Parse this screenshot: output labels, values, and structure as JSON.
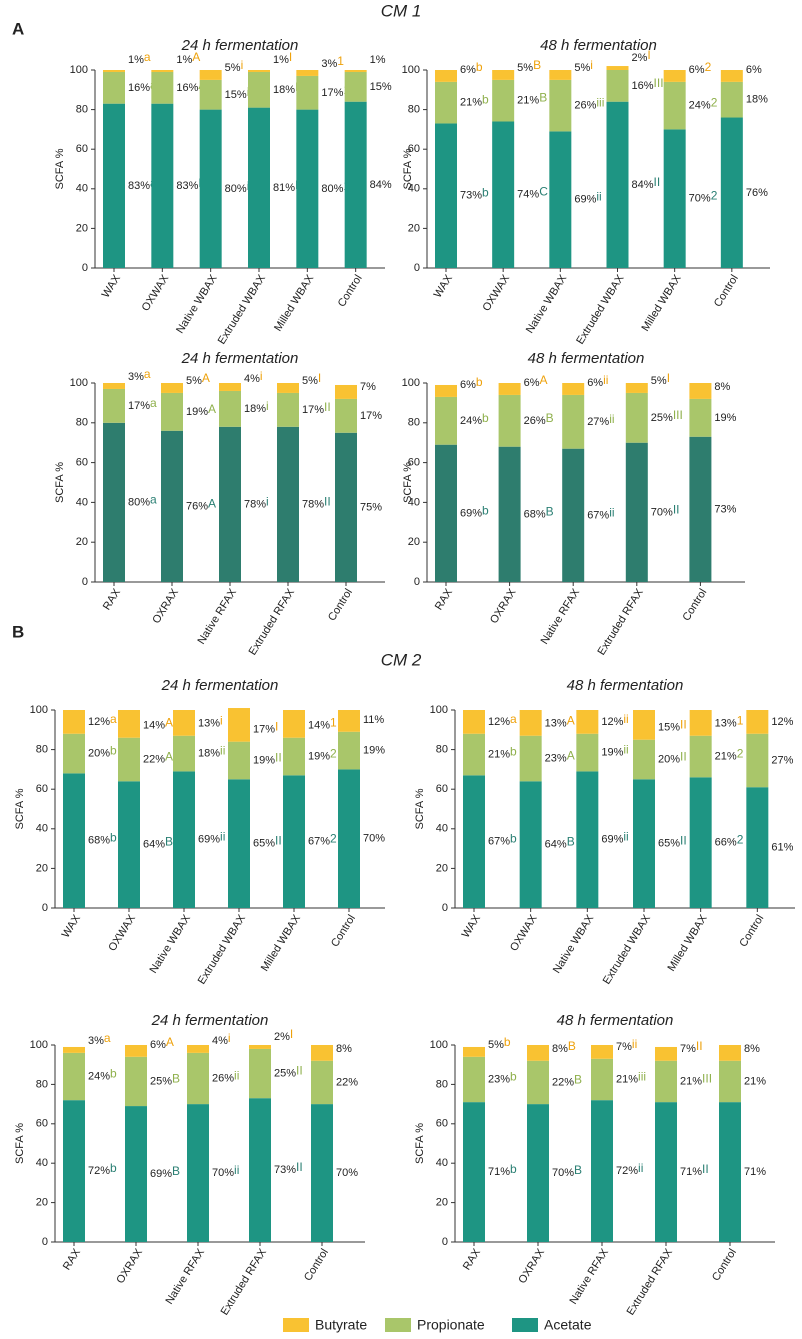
{
  "figure": {
    "sections": [
      {
        "label": "A",
        "title": "CM 1"
      },
      {
        "label": "B",
        "title": "CM 2"
      }
    ]
  },
  "chart_data": [
    {
      "type": "bar",
      "stacked": true,
      "title": "24 h fermentation",
      "ylabel": "SCFA %",
      "categories": [
        "WAX",
        "OXWAX",
        "Native WBAX",
        "Extruded WBAX",
        "Milled WBAX",
        "Control"
      ],
      "ylim": [
        0,
        100
      ],
      "yticks": [
        0,
        20,
        40,
        60,
        80,
        100
      ],
      "series": [
        {
          "name": "Butyrate",
          "color": "#f9c232",
          "letter_color": "#eea20c",
          "values": [
            1,
            1,
            5,
            1,
            3,
            1
          ],
          "value_labels": [
            "1%",
            "1%",
            "5%",
            "1%",
            "3%",
            "1%"
          ],
          "letters": [
            "a",
            "A",
            "i",
            "I",
            "1",
            null
          ]
        },
        {
          "name": "Propionate",
          "color": "#a9c66a",
          "letter_color": "#8fb04c",
          "values": [
            16,
            16,
            15,
            18,
            17,
            15
          ],
          "value_labels": [
            "16%",
            "16%",
            "15%",
            "18%",
            "17%",
            "15%"
          ],
          "letters": [
            "a",
            "A",
            "i",
            "II",
            "1",
            null
          ]
        },
        {
          "name": "Acetate",
          "color": "#1e9583",
          "letter_color": "#2a7f73",
          "values": [
            83,
            83,
            80,
            81,
            80,
            84
          ],
          "value_labels": [
            "83%",
            "83%",
            "80%",
            "81%",
            "80%",
            "84%"
          ],
          "letters": [
            "a",
            "B",
            "i",
            "II",
            "1",
            null
          ]
        }
      ]
    },
    {
      "type": "bar",
      "stacked": true,
      "title": "48 h fermentation",
      "ylabel": "SCFA %",
      "categories": [
        "WAX",
        "OXWAX",
        "Native WBAX",
        "Extruded WBAX",
        "Milled WBAX",
        "Control"
      ],
      "ylim": [
        0,
        100
      ],
      "yticks": [
        0,
        20,
        40,
        60,
        80,
        100
      ],
      "series": [
        {
          "name": "Butyrate",
          "color": "#f9c232",
          "letter_color": "#eea20c",
          "values": [
            6,
            5,
            5,
            2,
            6,
            6
          ],
          "value_labels": [
            "6%",
            "5%",
            "5%",
            "2%",
            "6%",
            "6%"
          ],
          "letters": [
            "b",
            "B",
            "i",
            "I",
            "2",
            null
          ]
        },
        {
          "name": "Propionate",
          "color": "#a9c66a",
          "letter_color": "#8fb04c",
          "values": [
            21,
            21,
            26,
            16,
            24,
            18
          ],
          "value_labels": [
            "21%",
            "21%",
            "26%",
            "16%",
            "24%",
            "18%"
          ],
          "letters": [
            "b",
            "B",
            "iii",
            "III",
            "2",
            null
          ]
        },
        {
          "name": "Acetate",
          "color": "#1e9583",
          "letter_color": "#2a7f73",
          "values": [
            73,
            74,
            69,
            84,
            70,
            76
          ],
          "value_labels": [
            "73%",
            "74%",
            "69%",
            "84%",
            "70%",
            "76%"
          ],
          "letters": [
            "b",
            "C",
            "ii",
            "II",
            "2",
            null
          ]
        }
      ]
    },
    {
      "type": "bar",
      "stacked": true,
      "title": "24 h fermentation",
      "ylabel": "SCFA %",
      "categories": [
        "RAX",
        "OXRAX",
        "Native RFAX",
        "Extruded RFAX",
        "Control"
      ],
      "ylim": [
        0,
        100
      ],
      "yticks": [
        0,
        20,
        40,
        60,
        80,
        100
      ],
      "series": [
        {
          "name": "Butyrate",
          "color": "#f9c232",
          "letter_color": "#eea20c",
          "values": [
            3,
            5,
            4,
            5,
            7
          ],
          "value_labels": [
            "3%",
            "5%",
            "4%",
            "5%",
            "7%"
          ],
          "letters": [
            "a",
            "A",
            "i",
            "I",
            null
          ]
        },
        {
          "name": "Propionate",
          "color": "#a9c66a",
          "letter_color": "#8fb04c",
          "values": [
            17,
            19,
            18,
            17,
            17
          ],
          "value_labels": [
            "17%",
            "19%",
            "18%",
            "17%",
            "17%"
          ],
          "letters": [
            "a",
            "A",
            "i",
            "II",
            null
          ]
        },
        {
          "name": "Acetate",
          "color": "#2e7d6e",
          "letter_color": "#2a7f73",
          "values": [
            80,
            76,
            78,
            78,
            75
          ],
          "value_labels": [
            "80%",
            "76%",
            "78%",
            "78%",
            "75%"
          ],
          "letters": [
            "a",
            "A",
            "i",
            "II",
            null
          ]
        }
      ]
    },
    {
      "type": "bar",
      "stacked": true,
      "title": "48 h fermentation",
      "ylabel": "SCFA %",
      "categories": [
        "RAX",
        "OXRAX",
        "Native RFAX",
        "Extruded RFAX",
        "Control"
      ],
      "ylim": [
        0,
        100
      ],
      "yticks": [
        0,
        20,
        40,
        60,
        80,
        100
      ],
      "series": [
        {
          "name": "Butyrate",
          "color": "#f9c232",
          "letter_color": "#eea20c",
          "values": [
            6,
            6,
            6,
            5,
            8
          ],
          "value_labels": [
            "6%",
            "6%",
            "6%",
            "5%",
            "8%"
          ],
          "letters": [
            "b",
            "A",
            "ii",
            "I",
            null
          ]
        },
        {
          "name": "Propionate",
          "color": "#a9c66a",
          "letter_color": "#8fb04c",
          "values": [
            24,
            26,
            27,
            25,
            19
          ],
          "value_labels": [
            "24%",
            "26%",
            "27%",
            "25%",
            "19%"
          ],
          "letters": [
            "b",
            "B",
            "ii",
            "III",
            null
          ]
        },
        {
          "name": "Acetate",
          "color": "#2e7d6e",
          "letter_color": "#2a7f73",
          "values": [
            69,
            68,
            67,
            70,
            73
          ],
          "value_labels": [
            "69%",
            "68%",
            "67%",
            "70%",
            "73%"
          ],
          "letters": [
            "b",
            "B",
            "ii",
            "II",
            null
          ]
        }
      ]
    },
    {
      "type": "bar",
      "stacked": true,
      "title": "24 h fermentation",
      "ylabel": "SCFA %",
      "categories": [
        "WAX",
        "OXWAX",
        "Native WBAX",
        "Extruded WBAX",
        "Milled WBAX",
        "Control"
      ],
      "ylim": [
        0,
        100
      ],
      "yticks": [
        0,
        20,
        40,
        60,
        80,
        100
      ],
      "series": [
        {
          "name": "Butyrate",
          "color": "#f9c232",
          "letter_color": "#eea20c",
          "values": [
            12,
            14,
            13,
            17,
            14,
            11
          ],
          "value_labels": [
            "12%",
            "14%",
            "13%",
            "17%",
            "14%",
            "11%"
          ],
          "letters": [
            "a",
            "A",
            "i",
            "I",
            "1",
            null
          ]
        },
        {
          "name": "Propionate",
          "color": "#a9c66a",
          "letter_color": "#8fb04c",
          "values": [
            20,
            22,
            18,
            19,
            19,
            19
          ],
          "value_labels": [
            "20%",
            "22%",
            "18%",
            "19%",
            "19%",
            "19%"
          ],
          "letters": [
            "b",
            "A",
            "ii",
            "II",
            "2",
            null
          ]
        },
        {
          "name": "Acetate",
          "color": "#1e9583",
          "letter_color": "#2a7f73",
          "values": [
            68,
            64,
            69,
            65,
            67,
            70
          ],
          "value_labels": [
            "68%",
            "64%",
            "69%",
            "65%",
            "67%",
            "70%"
          ],
          "letters": [
            "b",
            "B",
            "ii",
            "II",
            "2",
            null
          ]
        }
      ]
    },
    {
      "type": "bar",
      "stacked": true,
      "title": "48 h fermentation",
      "ylabel": "SCFA %",
      "categories": [
        "WAX",
        "OXWAX",
        "Native WBAX",
        "Extruded WBAX",
        "Milled WBAX",
        "Control"
      ],
      "ylim": [
        0,
        100
      ],
      "yticks": [
        0,
        20,
        40,
        60,
        80,
        100
      ],
      "series": [
        {
          "name": "Butyrate",
          "color": "#f9c232",
          "letter_color": "#eea20c",
          "values": [
            12,
            13,
            12,
            15,
            13,
            12
          ],
          "value_labels": [
            "12%",
            "13%",
            "12%",
            "15%",
            "13%",
            "12%"
          ],
          "letters": [
            "a",
            "A",
            "ii",
            "II",
            "1",
            null
          ]
        },
        {
          "name": "Propionate",
          "color": "#a9c66a",
          "letter_color": "#8fb04c",
          "values": [
            21,
            23,
            19,
            20,
            21,
            27
          ],
          "value_labels": [
            "21%",
            "23%",
            "19%",
            "20%",
            "21%",
            "27%"
          ],
          "letters": [
            "b",
            "A",
            "ii",
            "II",
            "2",
            null
          ]
        },
        {
          "name": "Acetate",
          "color": "#1e9583",
          "letter_color": "#2a7f73",
          "values": [
            67,
            64,
            69,
            65,
            66,
            61
          ],
          "value_labels": [
            "67%",
            "64%",
            "69%",
            "65%",
            "66%",
            "61%"
          ],
          "letters": [
            "b",
            "B",
            "ii",
            "II",
            "2",
            null
          ]
        }
      ]
    },
    {
      "type": "bar",
      "stacked": true,
      "title": "24 h fermentation",
      "ylabel": "SCFA %",
      "categories": [
        "RAX",
        "OXRAX",
        "Native RFAX",
        "Extruded RFAX",
        "Control"
      ],
      "ylim": [
        0,
        100
      ],
      "yticks": [
        0,
        20,
        40,
        60,
        80,
        100
      ],
      "series": [
        {
          "name": "Butyrate",
          "color": "#f9c232",
          "letter_color": "#eea20c",
          "values": [
            3,
            6,
            4,
            2,
            8
          ],
          "value_labels": [
            "3%",
            "6%",
            "4%",
            "2%",
            "8%"
          ],
          "letters": [
            "a",
            "A",
            "i",
            "I",
            null
          ]
        },
        {
          "name": "Propionate",
          "color": "#a9c66a",
          "letter_color": "#8fb04c",
          "values": [
            24,
            25,
            26,
            25,
            22
          ],
          "value_labels": [
            "24%",
            "25%",
            "26%",
            "25%",
            "22%"
          ],
          "letters": [
            "b",
            "B",
            "ii",
            "II",
            null
          ]
        },
        {
          "name": "Acetate",
          "color": "#1e9583",
          "letter_color": "#2a7f73",
          "values": [
            72,
            69,
            70,
            73,
            70
          ],
          "value_labels": [
            "72%",
            "69%",
            "70%",
            "73%",
            "70%"
          ],
          "letters": [
            "b",
            "B",
            "ii",
            "II",
            null
          ]
        }
      ]
    },
    {
      "type": "bar",
      "stacked": true,
      "title": "48 h fermentation",
      "ylabel": "SCFA %",
      "categories": [
        "RAX",
        "OXRAX",
        "Native RFAX",
        "Extruded RFAX",
        "Control"
      ],
      "ylim": [
        0,
        100
      ],
      "yticks": [
        0,
        20,
        40,
        60,
        80,
        100
      ],
      "series": [
        {
          "name": "Butyrate",
          "color": "#f9c232",
          "letter_color": "#eea20c",
          "values": [
            5,
            8,
            7,
            7,
            8
          ],
          "value_labels": [
            "5%",
            "8%",
            "7%",
            "7%",
            "8%"
          ],
          "letters": [
            "b",
            "B",
            "ii",
            "II",
            null
          ]
        },
        {
          "name": "Propionate",
          "color": "#a9c66a",
          "letter_color": "#8fb04c",
          "values": [
            23,
            22,
            21,
            21,
            21
          ],
          "value_labels": [
            "23%",
            "22%",
            "21%",
            "21%",
            "21%"
          ],
          "letters": [
            "b",
            "B",
            "iii",
            "III",
            null
          ]
        },
        {
          "name": "Acetate",
          "color": "#1e9583",
          "letter_color": "#2a7f73",
          "values": [
            71,
            70,
            72,
            71,
            71
          ],
          "value_labels": [
            "71%",
            "70%",
            "72%",
            "71%",
            "71%"
          ],
          "letters": [
            "b",
            "B",
            "ii",
            "II",
            null
          ]
        }
      ]
    }
  ]
}
